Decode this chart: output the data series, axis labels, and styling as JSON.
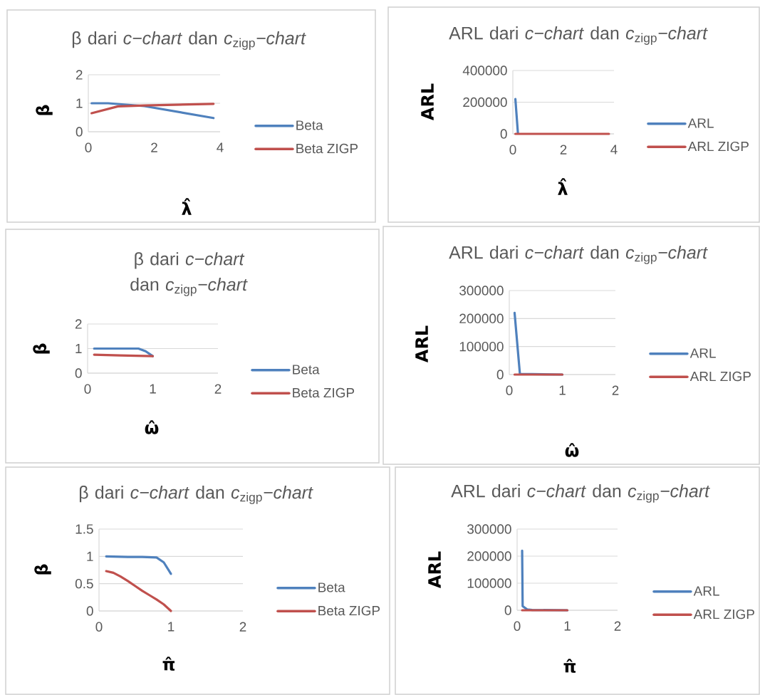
{
  "chart_data": [
    {
      "type": "line",
      "title": "β dari *c−chart* dan *c*$_{zigp}$*−chart*",
      "xlabel": "λ̂",
      "ylabel": "β",
      "xlim": [
        0,
        4
      ],
      "xticks": [
        0,
        2,
        4
      ],
      "ylim": [
        0,
        2
      ],
      "yticks": [
        0,
        1,
        2
      ],
      "grid": "y",
      "legend": "right",
      "series": [
        {
          "name": "Beta",
          "color": "#4f81bd",
          "x": [
            0.1,
            0.6,
            1.7,
            3.8
          ],
          "values": [
            1.0,
            1.0,
            0.9,
            0.48
          ]
        },
        {
          "name": "Beta ZIGP",
          "color": "#c0504d",
          "x": [
            0.1,
            0.9,
            1.7,
            3.8
          ],
          "values": [
            0.65,
            0.89,
            0.92,
            0.98
          ]
        }
      ]
    },
    {
      "type": "line",
      "title": "ARL dari *c−chart* dan *c*$_{zigp}$*−chart*",
      "xlabel": "λ̂",
      "ylabel": "ARL",
      "xlim": [
        0,
        4
      ],
      "xticks": [
        0,
        2,
        4
      ],
      "ylim": [
        0,
        400000
      ],
      "yticks": [
        0,
        200000,
        400000
      ],
      "grid": "y",
      "legend": "right",
      "series": [
        {
          "name": "ARL",
          "color": "#4f81bd",
          "x": [
            0.1,
            0.2
          ],
          "values": [
            220000,
            5000
          ]
        },
        {
          "name": "ARL ZIGP",
          "color": "#c0504d",
          "x": [
            0.1,
            3.8
          ],
          "values": [
            0,
            0
          ]
        }
      ]
    },
    {
      "type": "line",
      "title": "β dari *c−chart* dan *c*$_{zigp}$*−chart*",
      "xlabel": "ω̂",
      "ylabel": "β",
      "xlim": [
        0,
        2
      ],
      "xticks": [
        0,
        1,
        2
      ],
      "ylim": [
        0,
        2
      ],
      "yticks": [
        0,
        1,
        2
      ],
      "grid": "y",
      "legend": "right",
      "series": [
        {
          "name": "Beta",
          "color": "#4f81bd",
          "x": [
            0.1,
            0.78,
            0.89,
            1.0
          ],
          "values": [
            1.0,
            1.0,
            0.89,
            0.69
          ]
        },
        {
          "name": "Beta ZIGP",
          "color": "#c0504d",
          "x": [
            0.1,
            0.5,
            1.0
          ],
          "values": [
            0.75,
            0.72,
            0.69
          ]
        }
      ]
    },
    {
      "type": "line",
      "title": "ARL dari *c−chart* dan *c*$_{zigp}$*−chart*",
      "xlabel": "ω̂",
      "ylabel": "ARL",
      "xlim": [
        0,
        2
      ],
      "xticks": [
        0,
        1,
        2
      ],
      "ylim": [
        0,
        300000
      ],
      "yticks": [
        0,
        100000,
        200000,
        300000
      ],
      "grid": "y",
      "legend": "right",
      "series": [
        {
          "name": "ARL",
          "color": "#4f81bd",
          "x": [
            0.1,
            0.2,
            1.0
          ],
          "values": [
            220000,
            2000,
            0
          ]
        },
        {
          "name": "ARL ZIGP",
          "color": "#c0504d",
          "x": [
            0.1,
            1.0
          ],
          "values": [
            0,
            0
          ]
        }
      ]
    },
    {
      "type": "line",
      "title": "β dari *c−chart* dan *c*$_{zigp}$*−chart*",
      "xlabel": "π̂",
      "ylabel": "β",
      "xlim": [
        0,
        2
      ],
      "xticks": [
        0,
        1,
        2
      ],
      "ylim": [
        0,
        1.5
      ],
      "yticks": [
        0,
        0.5,
        1,
        1.5
      ],
      "grid": "y",
      "legend": "right",
      "series": [
        {
          "name": "Beta",
          "color": "#4f81bd",
          "x": [
            0.1,
            0.4,
            0.6,
            0.8,
            0.9,
            1.0
          ],
          "values": [
            1.0,
            0.99,
            0.99,
            0.98,
            0.89,
            0.68
          ]
        },
        {
          "name": "Beta ZIGP",
          "color": "#c0504d",
          "x": [
            0.1,
            0.2,
            0.3,
            0.4,
            0.5,
            0.6,
            0.7,
            0.8,
            0.9,
            1.0
          ],
          "values": [
            0.73,
            0.7,
            0.63,
            0.55,
            0.46,
            0.37,
            0.29,
            0.21,
            0.12,
            0
          ]
        }
      ]
    },
    {
      "type": "line",
      "title": "ARL dari *c−chart* dan *c*$_{zigp}$*−chart*",
      "xlabel": "π̂",
      "ylabel": "ARL",
      "xlim": [
        0,
        2
      ],
      "xticks": [
        0,
        1,
        2
      ],
      "ylim": [
        0,
        300000
      ],
      "yticks": [
        0,
        100000,
        200000,
        300000
      ],
      "grid": "y",
      "legend": "right",
      "series": [
        {
          "name": "ARL",
          "color": "#4f81bd",
          "x": [
            0.1,
            0.11,
            0.2,
            0.3,
            1.0
          ],
          "values": [
            220000,
            15000,
            3000,
            1000,
            0
          ]
        },
        {
          "name": "ARL ZIGP",
          "color": "#c0504d",
          "x": [
            0.1,
            1.0
          ],
          "values": [
            0,
            0
          ]
        }
      ]
    }
  ]
}
